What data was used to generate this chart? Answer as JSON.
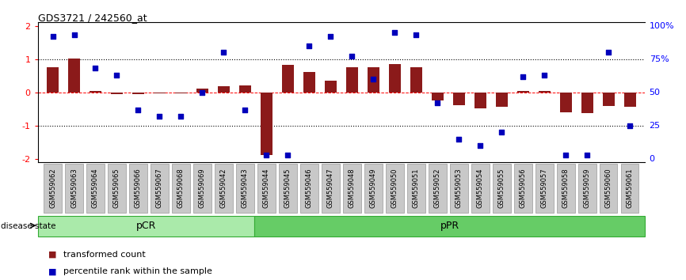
{
  "title": "GDS3721 / 242560_at",
  "samples": [
    "GSM559062",
    "GSM559063",
    "GSM559064",
    "GSM559065",
    "GSM559066",
    "GSM559067",
    "GSM559068",
    "GSM559069",
    "GSM559042",
    "GSM559043",
    "GSM559044",
    "GSM559045",
    "GSM559046",
    "GSM559047",
    "GSM559048",
    "GSM559049",
    "GSM559050",
    "GSM559051",
    "GSM559052",
    "GSM559053",
    "GSM559054",
    "GSM559055",
    "GSM559056",
    "GSM559057",
    "GSM559058",
    "GSM559059",
    "GSM559060",
    "GSM559061"
  ],
  "transformed_count": [
    0.75,
    1.02,
    0.04,
    -0.05,
    -0.05,
    -0.02,
    -0.02,
    0.12,
    0.18,
    0.22,
    -1.88,
    0.82,
    0.62,
    0.35,
    0.76,
    0.76,
    0.85,
    0.76,
    -0.25,
    -0.38,
    -0.48,
    -0.42,
    0.05,
    0.05,
    -0.6,
    -0.62,
    -0.4,
    -0.42
  ],
  "percentile_rank": [
    92,
    93,
    68,
    63,
    37,
    32,
    32,
    50,
    80,
    37,
    3,
    3,
    85,
    92,
    77,
    60,
    95,
    93,
    42,
    15,
    10,
    20,
    62,
    63,
    3,
    3,
    80,
    25
  ],
  "pcr_count": 10,
  "bar_color": "#8B1A1A",
  "dot_color": "#0000BB",
  "pcr_color": "#AAEAAA",
  "ppr_color": "#66CC66",
  "ylim_left": [
    -2.1,
    2.1
  ],
  "yticks_left": [
    -2,
    -1,
    0,
    1,
    2
  ],
  "ytick_right_labels": [
    "0",
    "25",
    "50",
    "75%",
    "100%"
  ],
  "legend_items": [
    "transformed count",
    "percentile rank within the sample"
  ],
  "legend_colors": [
    "#8B1A1A",
    "#0000BB"
  ],
  "label_box_color": "#C8C8C8",
  "label_box_edge_color": "#999999"
}
